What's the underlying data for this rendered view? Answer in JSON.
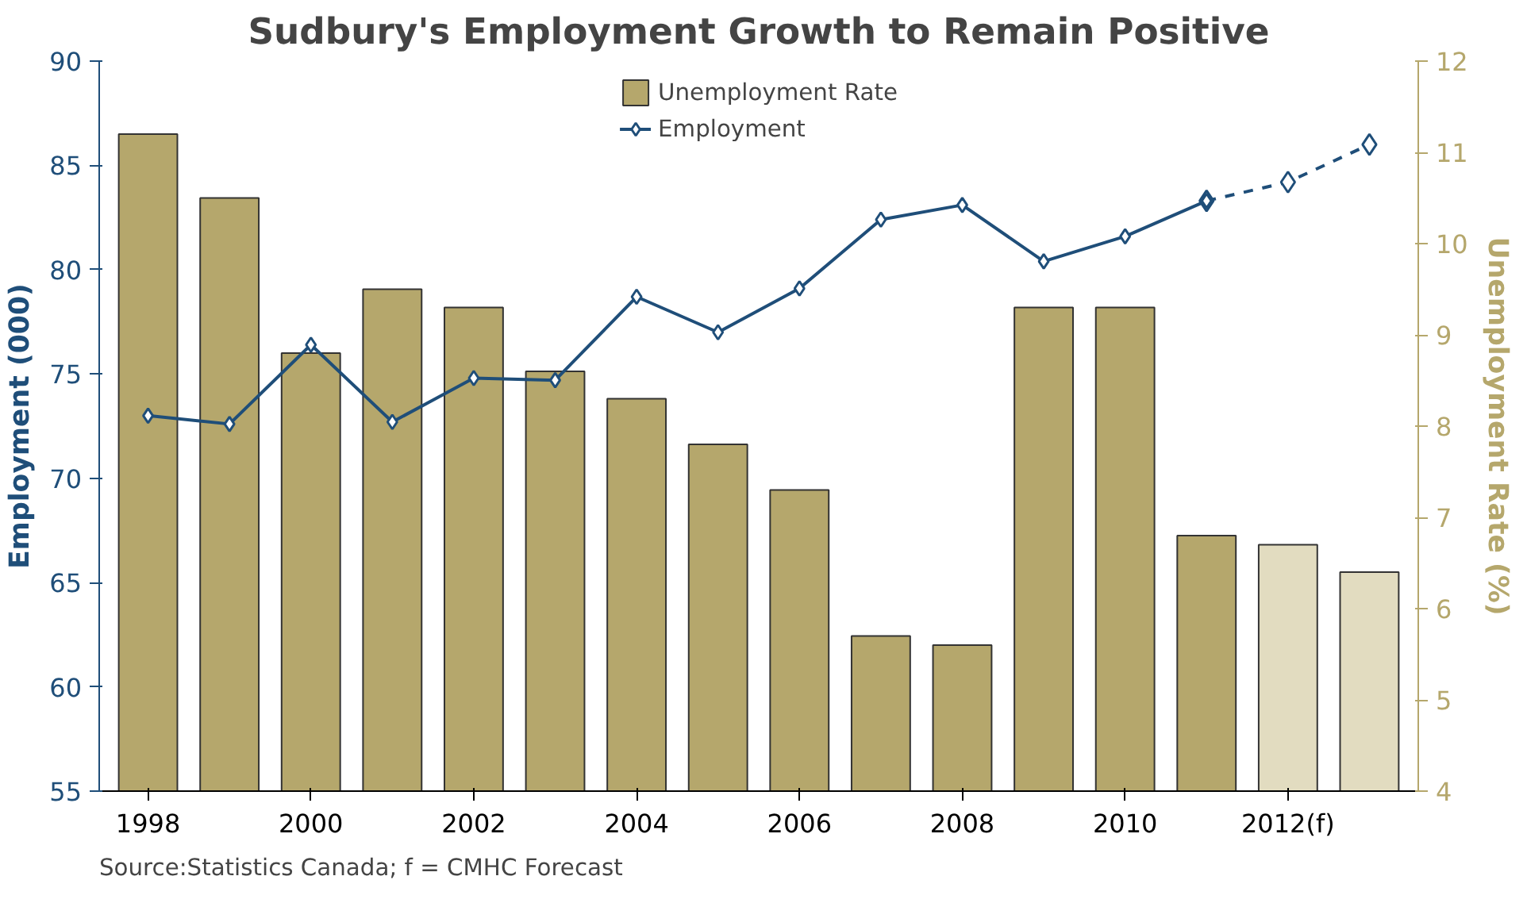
{
  "chart_data": {
    "type": "bar",
    "title": "Sudbury's Employment Growth to Remain Positive",
    "categories": [
      "1998",
      null,
      "2000",
      null,
      "2002",
      null,
      "2004",
      null,
      "2006",
      null,
      "2008",
      null,
      "2010",
      null,
      "2012(f)",
      null
    ],
    "ylabel": "Employment (000)",
    "y2label": "Unemployment Rate (%)",
    "ylim": [
      55,
      90
    ],
    "yticks": [
      55,
      60,
      65,
      70,
      75,
      80,
      85,
      90
    ],
    "y2lim": [
      4,
      12
    ],
    "y2ticks": [
      4,
      5,
      6,
      7,
      8,
      9,
      10,
      11,
      12
    ],
    "series": [
      {
        "name": "Unemployment Rate",
        "axis": "y2",
        "colors": [
          "#b5a76c",
          "#b5a76c",
          "#b5a76c",
          "#b5a76c",
          "#b5a76c",
          "#b5a76c",
          "#b5a76c",
          "#b5a76c",
          "#b5a76c",
          "#b5a76c",
          "#b5a76c",
          "#b5a76c",
          "#b5a76c",
          "#b5a76c",
          "#e2dcc0",
          "#e2dcc0"
        ],
        "values": [
          11.2,
          10.5,
          8.8,
          9.5,
          9.3,
          8.6,
          8.3,
          7.8,
          7.3,
          5.7,
          5.6,
          9.3,
          9.3,
          6.8,
          6.7,
          6.4
        ]
      },
      {
        "type": "line",
        "color": "#1f4e79",
        "marker": "diamond",
        "line_style": "dashed",
        "values": [
          null,
          null,
          null,
          null,
          null,
          null,
          null,
          null,
          null,
          null,
          null,
          null,
          null,
          83.3,
          84.2,
          86.0
        ]
      },
      {
        "name": "Employment",
        "type": "line",
        "color": "#1f4e79",
        "marker": "diamond",
        "line_style": "solid",
        "values": [
          73.0,
          72.6,
          76.4,
          72.7,
          74.8,
          74.7,
          78.7,
          77.0,
          79.1,
          82.4,
          83.1,
          80.4,
          81.6,
          83.3,
          null,
          null
        ]
      }
    ],
    "legend": "top",
    "grid": false,
    "annotations": [
      "Source:Statistics Canada; f = CMHC Forecast"
    ]
  }
}
